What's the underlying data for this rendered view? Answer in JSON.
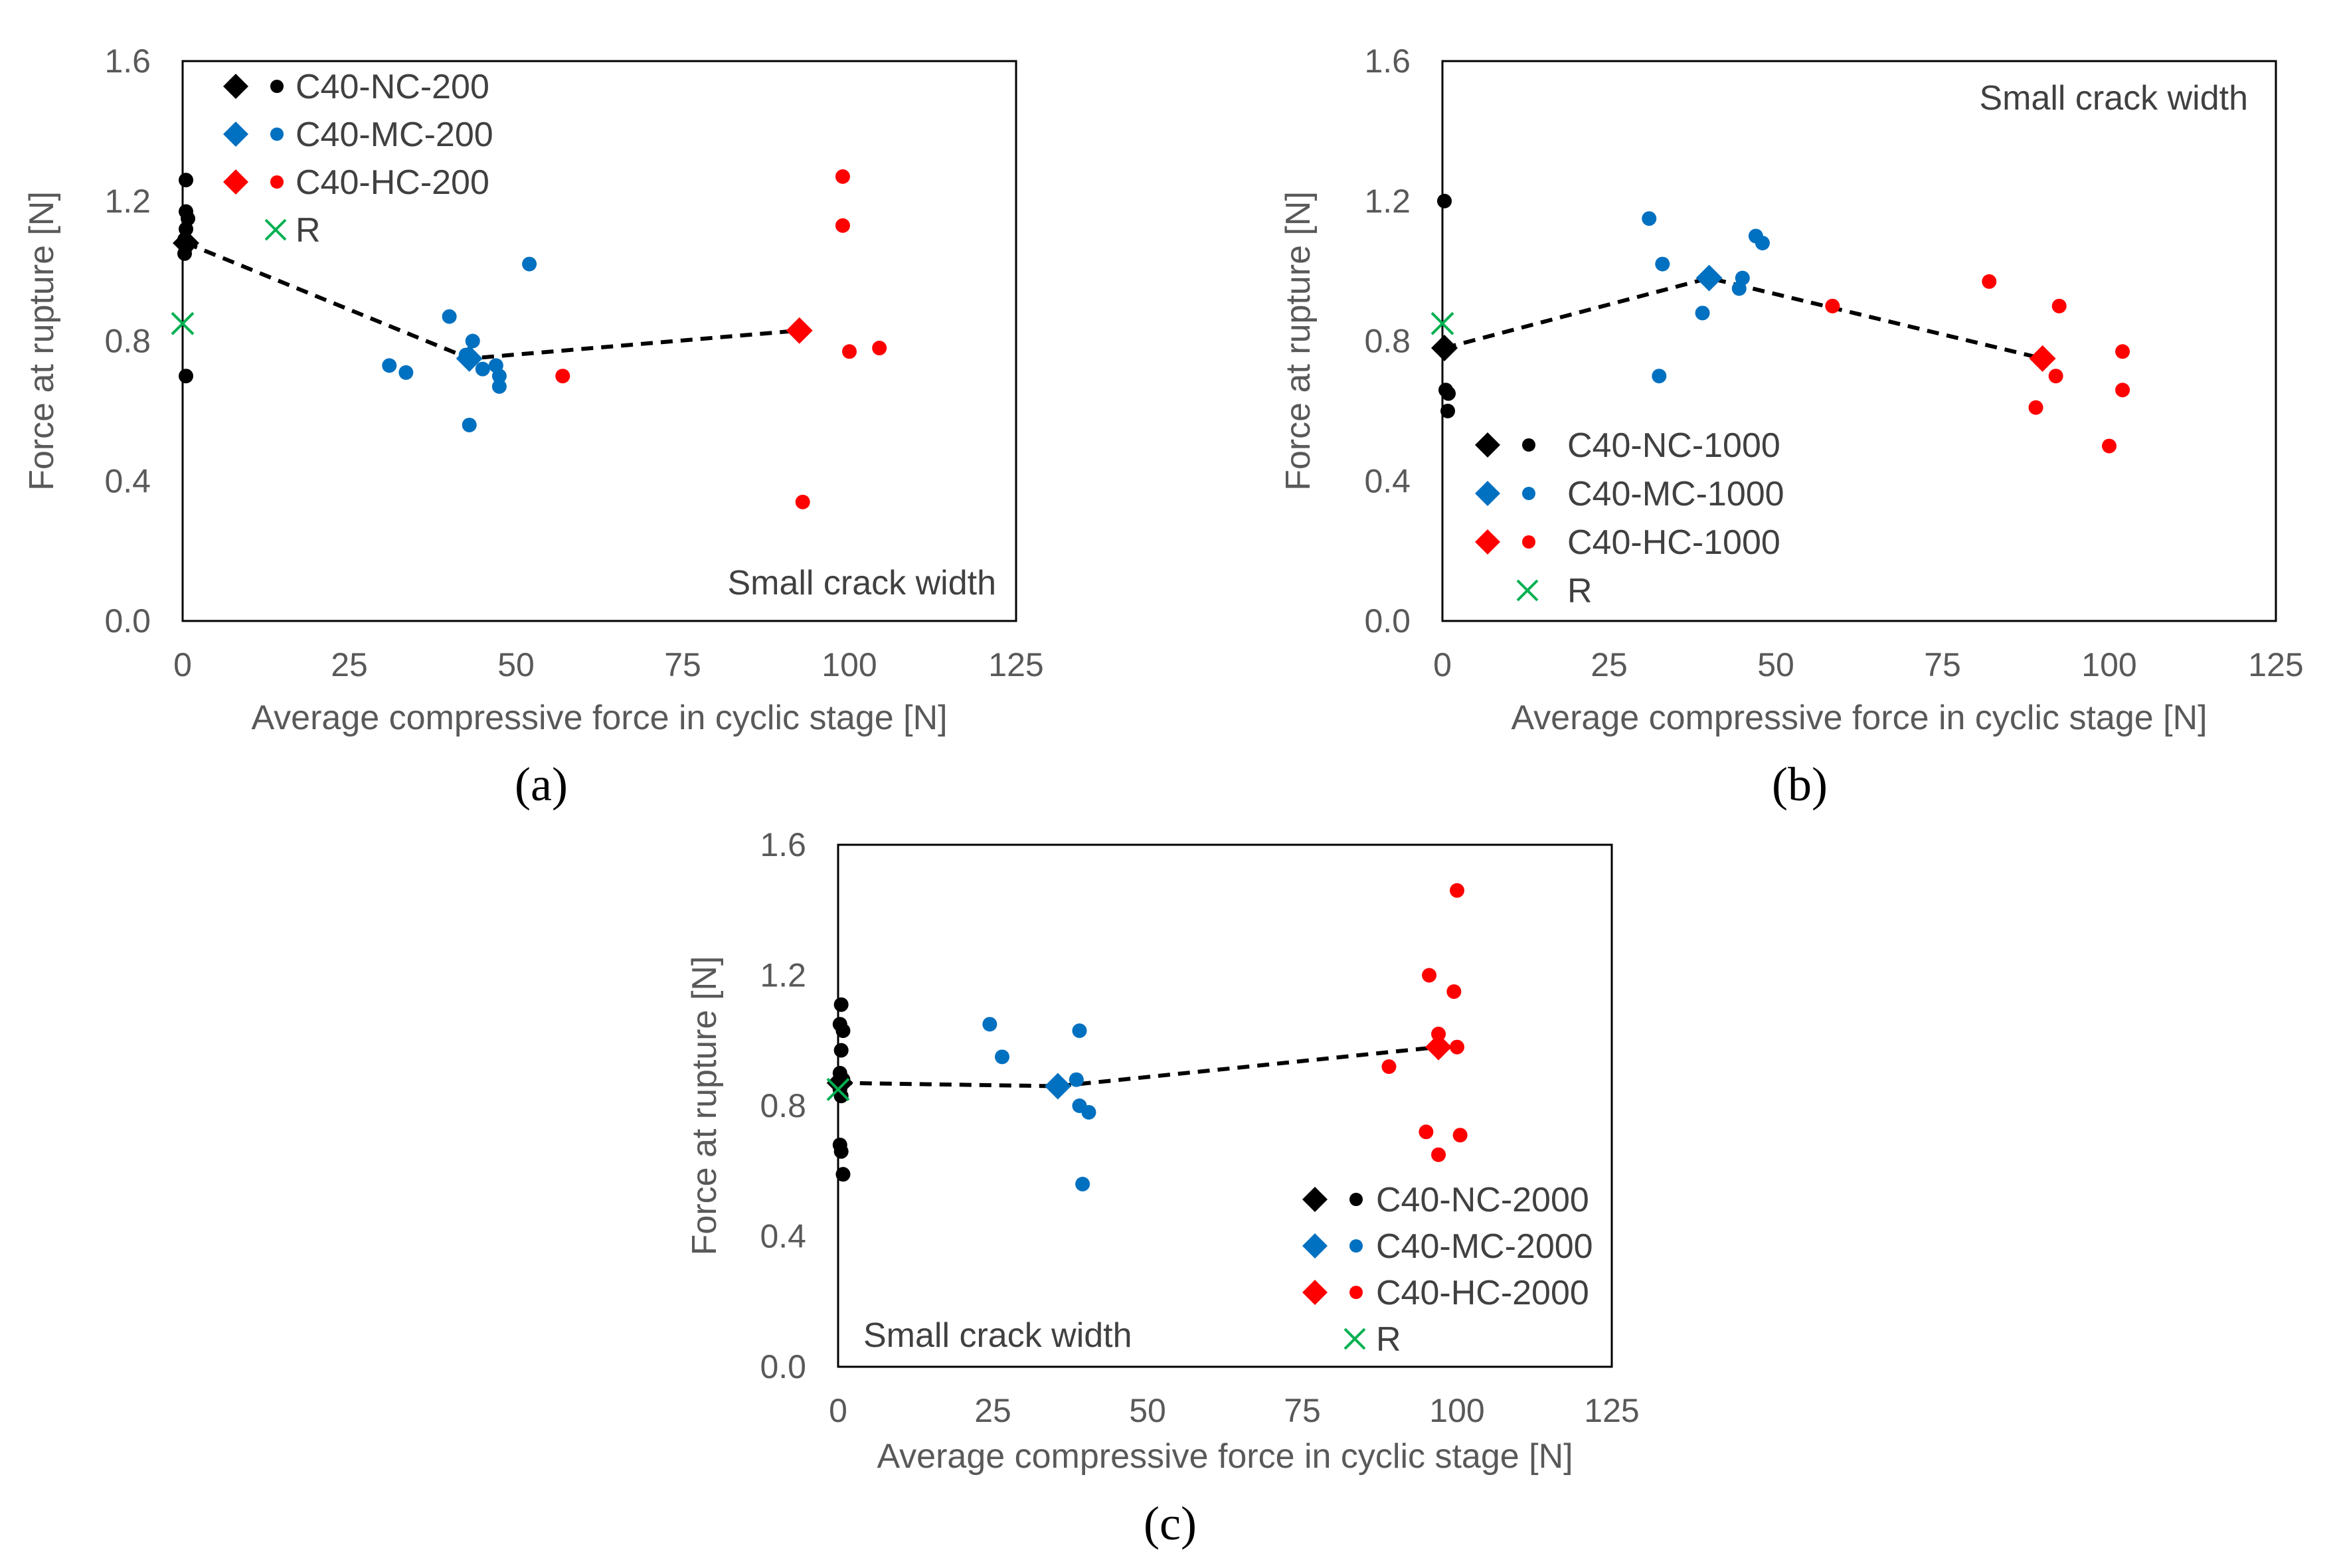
{
  "colors": {
    "NC": "#000000",
    "MC": "#0070c0",
    "HC": "#ff0000",
    "R": "#00b050",
    "frame": "#000000",
    "trend": "#000000"
  },
  "chart_data": [
    {
      "type": "scatter",
      "panel_label": "(a)",
      "xlabel": "Average compressive force in cyclic stage [N]",
      "ylabel": "Force at rupture [N]",
      "xlim": [
        0,
        125
      ],
      "ylim": [
        0,
        1.6
      ],
      "xticks": [
        "0",
        "25",
        "50",
        "75",
        "100",
        "125"
      ],
      "yticks": [
        "0.0",
        "0.4",
        "0.8",
        "1.2",
        "1.6"
      ],
      "annotation": "Small crack width",
      "legend": [
        "C40-NC-200",
        "C40-MC-200",
        "C40-HC-200",
        "R"
      ],
      "series": [
        {
          "name": "C40-NC-200",
          "color_key": "NC",
          "points": [
            [
              0.5,
              1.26
            ],
            [
              0.5,
              1.17
            ],
            [
              0.8,
              1.15
            ],
            [
              0.5,
              1.12
            ],
            [
              0.3,
              1.09
            ],
            [
              0.5,
              1.07
            ],
            [
              0.3,
              1.05
            ],
            [
              0.5,
              0.7
            ]
          ],
          "mean": [
            0.5,
            1.08
          ]
        },
        {
          "name": "C40-MC-200",
          "color_key": "MC",
          "points": [
            [
              52,
              1.02
            ],
            [
              40,
              0.87
            ],
            [
              43.5,
              0.8
            ],
            [
              31,
              0.73
            ],
            [
              33.5,
              0.71
            ],
            [
              42.5,
              0.76
            ],
            [
              45,
              0.72
            ],
            [
              47,
              0.73
            ],
            [
              47.5,
              0.7
            ],
            [
              47.5,
              0.67
            ],
            [
              43,
              0.56
            ]
          ],
          "mean": [
            43,
            0.75
          ]
        },
        {
          "name": "C40-HC-200",
          "color_key": "HC",
          "points": [
            [
              99,
              1.27
            ],
            [
              99,
              1.13
            ],
            [
              100,
              0.77
            ],
            [
              104.5,
              0.78
            ],
            [
              57,
              0.7
            ],
            [
              93,
              0.34
            ]
          ],
          "mean": [
            92.5,
            0.83
          ]
        },
        {
          "name": "R",
          "color_key": "R",
          "points": [
            [
              0,
              0.85
            ]
          ]
        }
      ],
      "trend": [
        [
          0.5,
          1.08
        ],
        [
          43,
          0.75
        ],
        [
          92.5,
          0.83
        ]
      ]
    },
    {
      "type": "scatter",
      "panel_label": "(b)",
      "xlabel": "Average compressive force in cyclic stage [N]",
      "ylabel": "Force at rupture [N]",
      "xlim": [
        0,
        125
      ],
      "ylim": [
        0,
        1.6
      ],
      "xticks": [
        "0",
        "25",
        "50",
        "75",
        "100",
        "125"
      ],
      "yticks": [
        "0.0",
        "0.4",
        "0.8",
        "1.2",
        "1.6"
      ],
      "annotation": "Small crack width",
      "legend": [
        "C40-NC-1000",
        "C40-MC-1000",
        "C40-HC-1000",
        "R"
      ],
      "series": [
        {
          "name": "C40-NC-1000",
          "color_key": "NC",
          "points": [
            [
              0.3,
              1.2
            ],
            [
              0.5,
              0.66
            ],
            [
              0.9,
              0.65
            ],
            [
              0.8,
              0.6
            ],
            [
              0.3,
              0.78
            ]
          ],
          "mean": [
            0.3,
            0.78
          ]
        },
        {
          "name": "C40-MC-1000",
          "color_key": "MC",
          "points": [
            [
              31,
              1.15
            ],
            [
              33,
              1.02
            ],
            [
              47,
              1.1
            ],
            [
              48,
              1.08
            ],
            [
              45,
              0.98
            ],
            [
              44.5,
              0.95
            ],
            [
              39,
              0.88
            ],
            [
              32.5,
              0.7
            ]
          ],
          "mean": [
            40,
            0.98
          ]
        },
        {
          "name": "C40-HC-1000",
          "color_key": "HC",
          "points": [
            [
              58.5,
              0.9
            ],
            [
              82,
              0.97
            ],
            [
              92.5,
              0.9
            ],
            [
              102,
              0.77
            ],
            [
              102,
              0.66
            ],
            [
              92,
              0.7
            ],
            [
              89,
              0.61
            ],
            [
              100,
              0.5
            ]
          ],
          "mean": [
            90,
            0.75
          ]
        },
        {
          "name": "R",
          "color_key": "R",
          "points": [
            [
              0,
              0.85
            ]
          ]
        }
      ],
      "trend": [
        [
          0.3,
          0.78
        ],
        [
          40,
          0.98
        ],
        [
          90,
          0.75
        ]
      ]
    },
    {
      "type": "scatter",
      "panel_label": "(c)",
      "xlabel": "Average compressive force in cyclic stage [N]",
      "ylabel": "Force at rupture [N]",
      "xlim": [
        0,
        125
      ],
      "ylim": [
        0,
        1.6
      ],
      "xticks": [
        "0",
        "25",
        "50",
        "75",
        "100",
        "125"
      ],
      "yticks": [
        "0.0",
        "0.4",
        "0.8",
        "1.2",
        "1.6"
      ],
      "annotation": "Small crack width",
      "legend": [
        "C40-NC-2000",
        "C40-MC-2000",
        "C40-HC-2000",
        "R"
      ],
      "series": [
        {
          "name": "C40-NC-2000",
          "color_key": "NC",
          "points": [
            [
              0.5,
              1.11
            ],
            [
              0.3,
              1.05
            ],
            [
              0.8,
              1.03
            ],
            [
              0.5,
              0.97
            ],
            [
              0.3,
              0.9
            ],
            [
              0.8,
              0.88
            ],
            [
              0.3,
              0.85
            ],
            [
              0.5,
              0.83
            ],
            [
              0.3,
              0.68
            ],
            [
              0.5,
              0.66
            ],
            [
              0.8,
              0.59
            ]
          ],
          "mean": [
            0.3,
            0.87
          ]
        },
        {
          "name": "C40-MC-2000",
          "color_key": "MC",
          "points": [
            [
              24.5,
              1.05
            ],
            [
              26.5,
              0.95
            ],
            [
              39,
              1.03
            ],
            [
              38.5,
              0.88
            ],
            [
              39,
              0.8
            ],
            [
              40.5,
              0.78
            ],
            [
              39.5,
              0.56
            ]
          ],
          "mean": [
            35.5,
            0.86
          ]
        },
        {
          "name": "C40-HC-2000",
          "color_key": "HC",
          "points": [
            [
              100,
              1.46
            ],
            [
              95.5,
              1.2
            ],
            [
              99.5,
              1.15
            ],
            [
              97,
              1.02
            ],
            [
              100,
              0.98
            ],
            [
              89,
              0.92
            ],
            [
              95,
              0.72
            ],
            [
              100.5,
              0.71
            ],
            [
              97,
              0.65
            ]
          ],
          "mean": [
            97,
            0.98
          ]
        },
        {
          "name": "R",
          "color_key": "R",
          "points": [
            [
              0,
              0.85
            ]
          ]
        }
      ],
      "trend": [
        [
          0.3,
          0.87
        ],
        [
          35.5,
          0.86
        ],
        [
          97,
          0.98
        ]
      ]
    }
  ]
}
